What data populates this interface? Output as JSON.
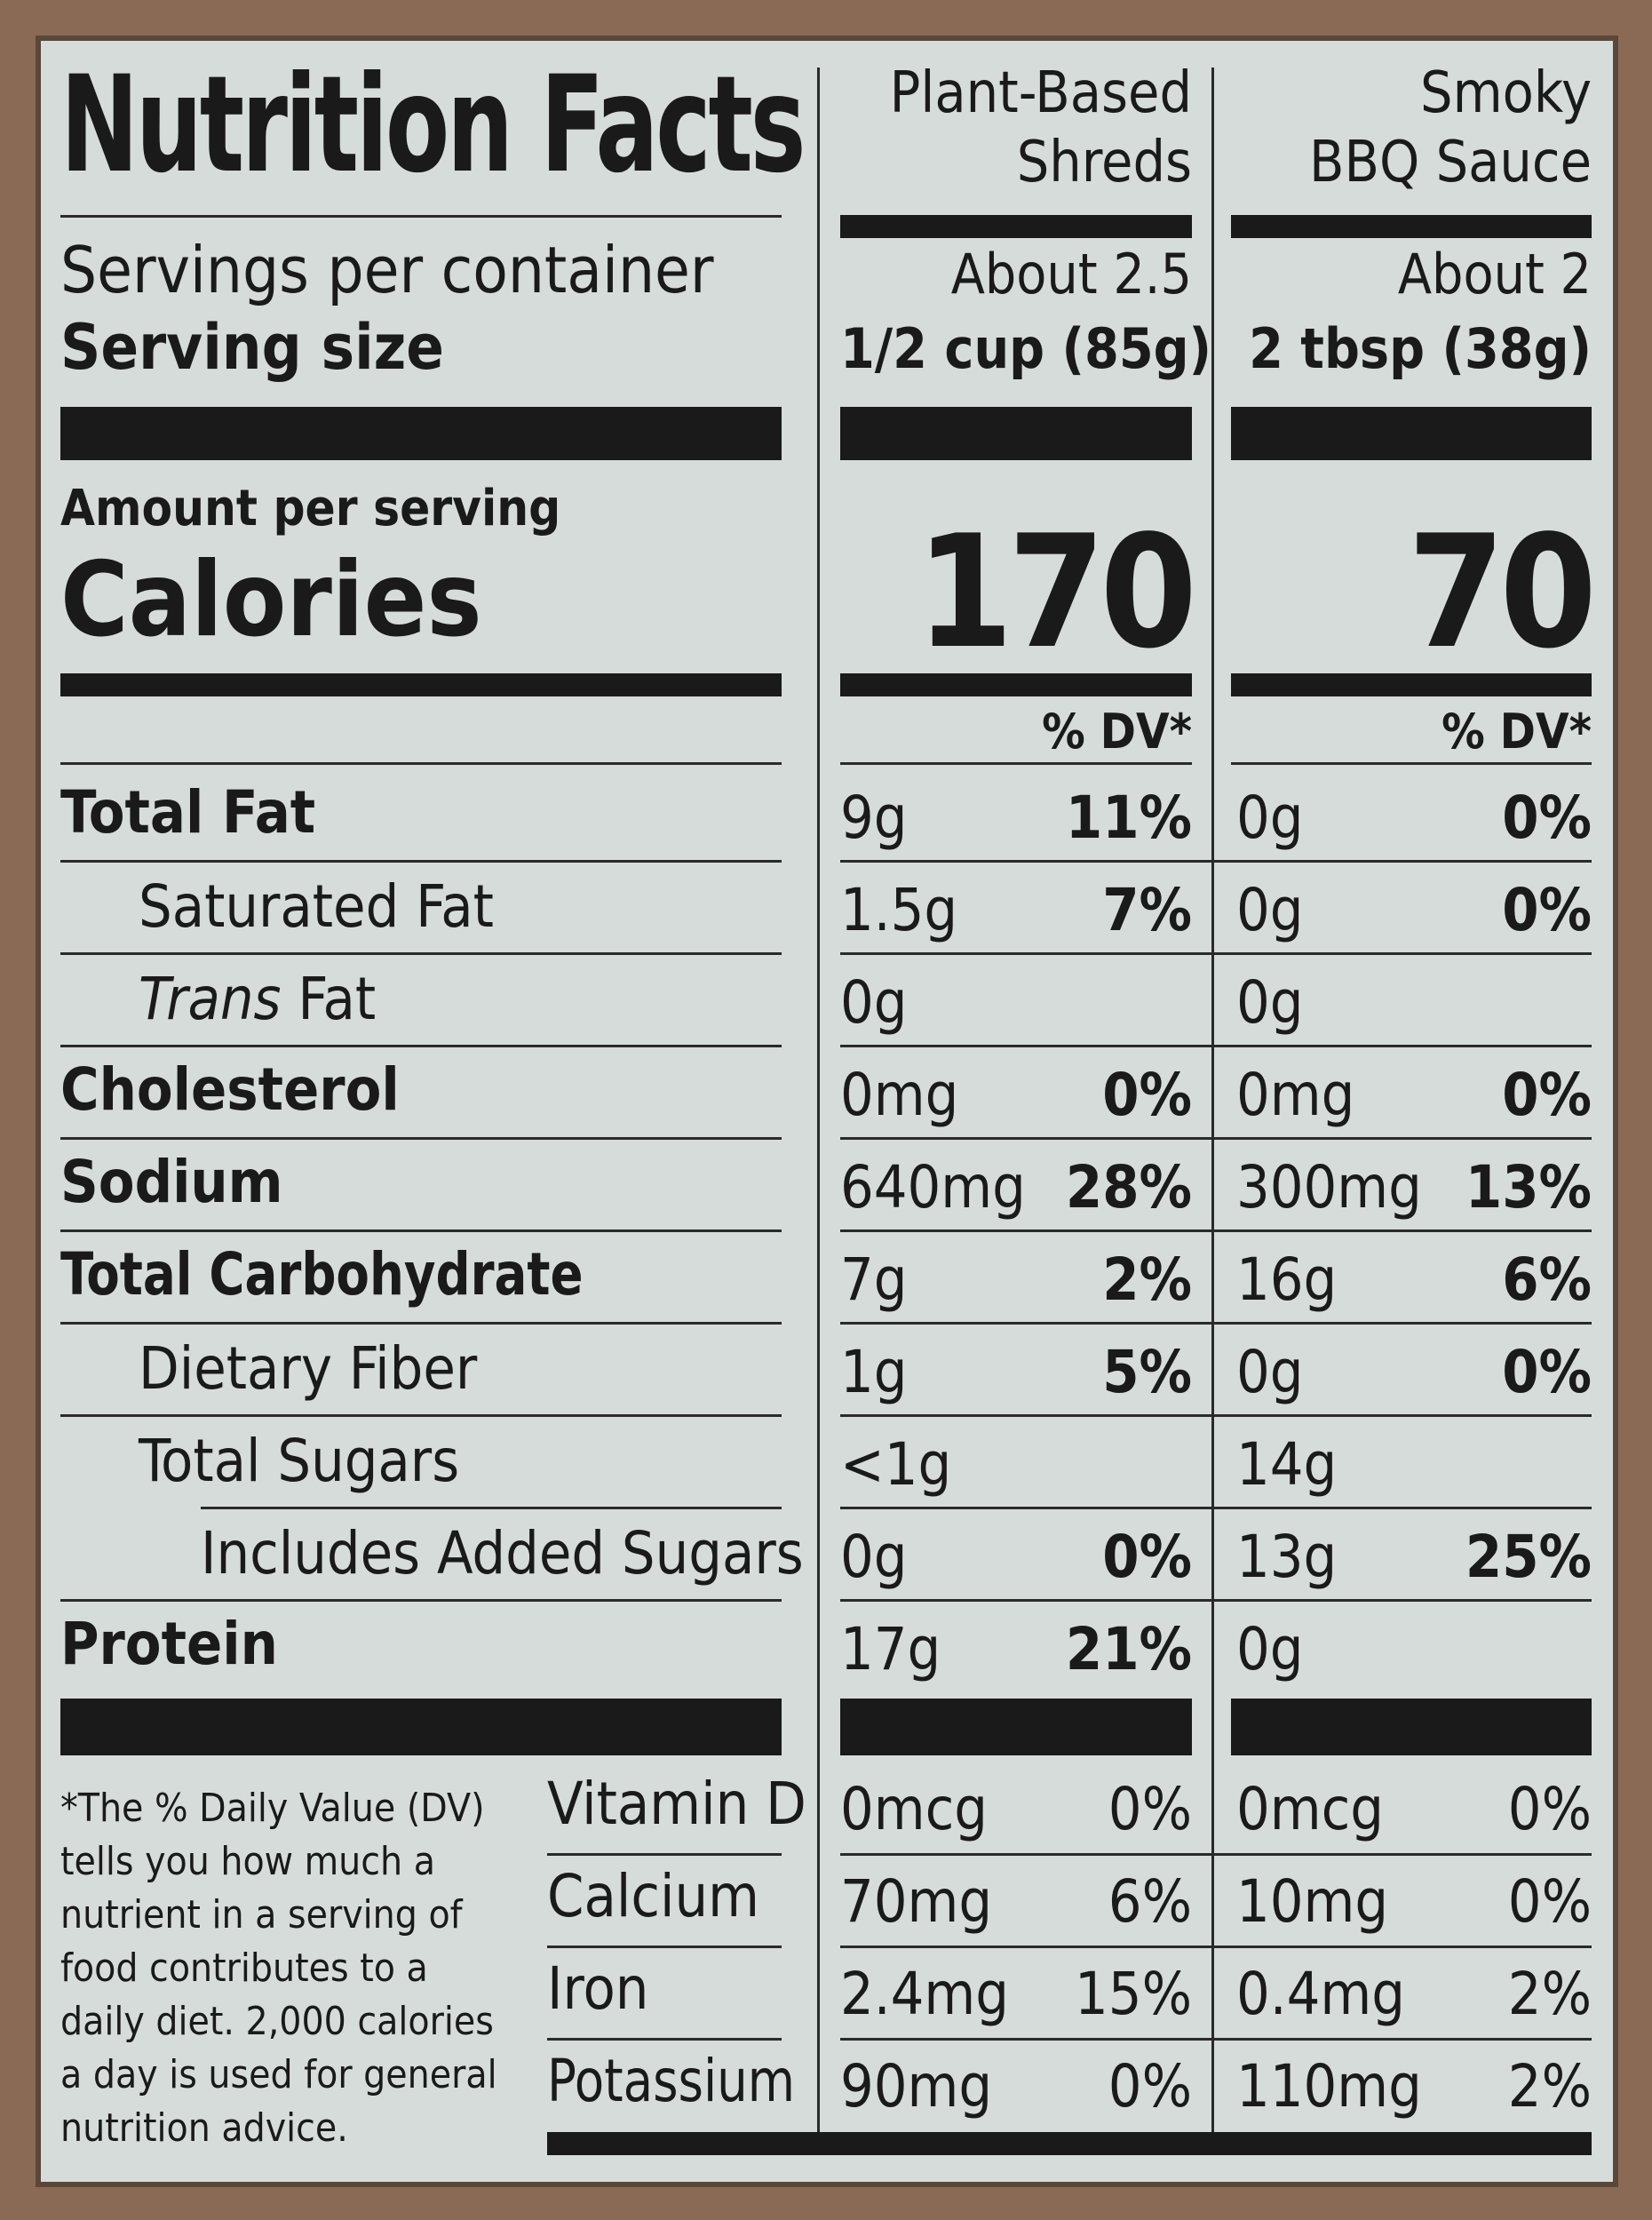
{
  "title": "Nutrition Facts",
  "columns": [
    {
      "name_line1": "Plant-Based",
      "name_line2": "Shreds",
      "servings": "About 2.5",
      "serving_size": "1/2 cup (85g)",
      "calories": "170"
    },
    {
      "name_line1": "Smoky",
      "name_line2": "BBQ Sauce",
      "servings": "About 2",
      "serving_size": "2 tbsp (38g)",
      "calories": "70"
    }
  ],
  "labels": {
    "servings_per_container": "Servings per container",
    "serving_size": "Serving size",
    "amount_per_serving": "Amount per serving",
    "calories": "Calories",
    "dv_header": "% DV*"
  },
  "nutrients": [
    {
      "name": "Total Fat",
      "c1_amt": "9g",
      "c1_dv": "11%",
      "c2_amt": "0g",
      "c2_dv": "0%"
    },
    {
      "name": "Saturated Fat",
      "c1_amt": "1.5g",
      "c1_dv": "7%",
      "c2_amt": "0g",
      "c2_dv": "0%"
    },
    {
      "name_italic": "Trans",
      "name_rest": " Fat",
      "c1_amt": "0g",
      "c1_dv": "",
      "c2_amt": "0g",
      "c2_dv": ""
    },
    {
      "name": "Cholesterol",
      "c1_amt": "0mg",
      "c1_dv": "0%",
      "c2_amt": "0mg",
      "c2_dv": "0%"
    },
    {
      "name": "Sodium",
      "c1_amt": "640mg",
      "c1_dv": "28%",
      "c2_amt": "300mg",
      "c2_dv": "13%"
    },
    {
      "name": "Total Carbohydrate",
      "c1_amt": "7g",
      "c1_dv": "2%",
      "c2_amt": "16g",
      "c2_dv": "6%"
    },
    {
      "name": "Dietary Fiber",
      "c1_amt": "1g",
      "c1_dv": "5%",
      "c2_amt": "0g",
      "c2_dv": "0%"
    },
    {
      "name": "Total Sugars",
      "c1_amt": "<1g",
      "c1_dv": "",
      "c2_amt": "14g",
      "c2_dv": ""
    },
    {
      "name": "Includes Added Sugars",
      "c1_amt": "0g",
      "c1_dv": "0%",
      "c2_amt": "13g",
      "c2_dv": "25%"
    },
    {
      "name": "Protein",
      "c1_amt": "17g",
      "c1_dv": "21%",
      "c2_amt": "0g",
      "c2_dv": ""
    }
  ],
  "vitamins": [
    {
      "name": "Vitamin D",
      "c1_amt": "0mcg",
      "c1_dv": "0%",
      "c2_amt": "0mcg",
      "c2_dv": "0%"
    },
    {
      "name": "Calcium",
      "c1_amt": "70mg",
      "c1_dv": "6%",
      "c2_amt": "10mg",
      "c2_dv": "0%"
    },
    {
      "name": "Iron",
      "c1_amt": "2.4mg",
      "c1_dv": "15%",
      "c2_amt": "0.4mg",
      "c2_dv": "2%"
    },
    {
      "name": "Potassium",
      "c1_amt": "90mg",
      "c1_dv": "0%",
      "c2_amt": "110mg",
      "c2_dv": "2%"
    }
  ],
  "footnote": "*The % Daily Value (DV) tells you how much a nutrient in a serving of food contributes to a daily diet. 2,000 calories a day is used for general nutrition advice."
}
